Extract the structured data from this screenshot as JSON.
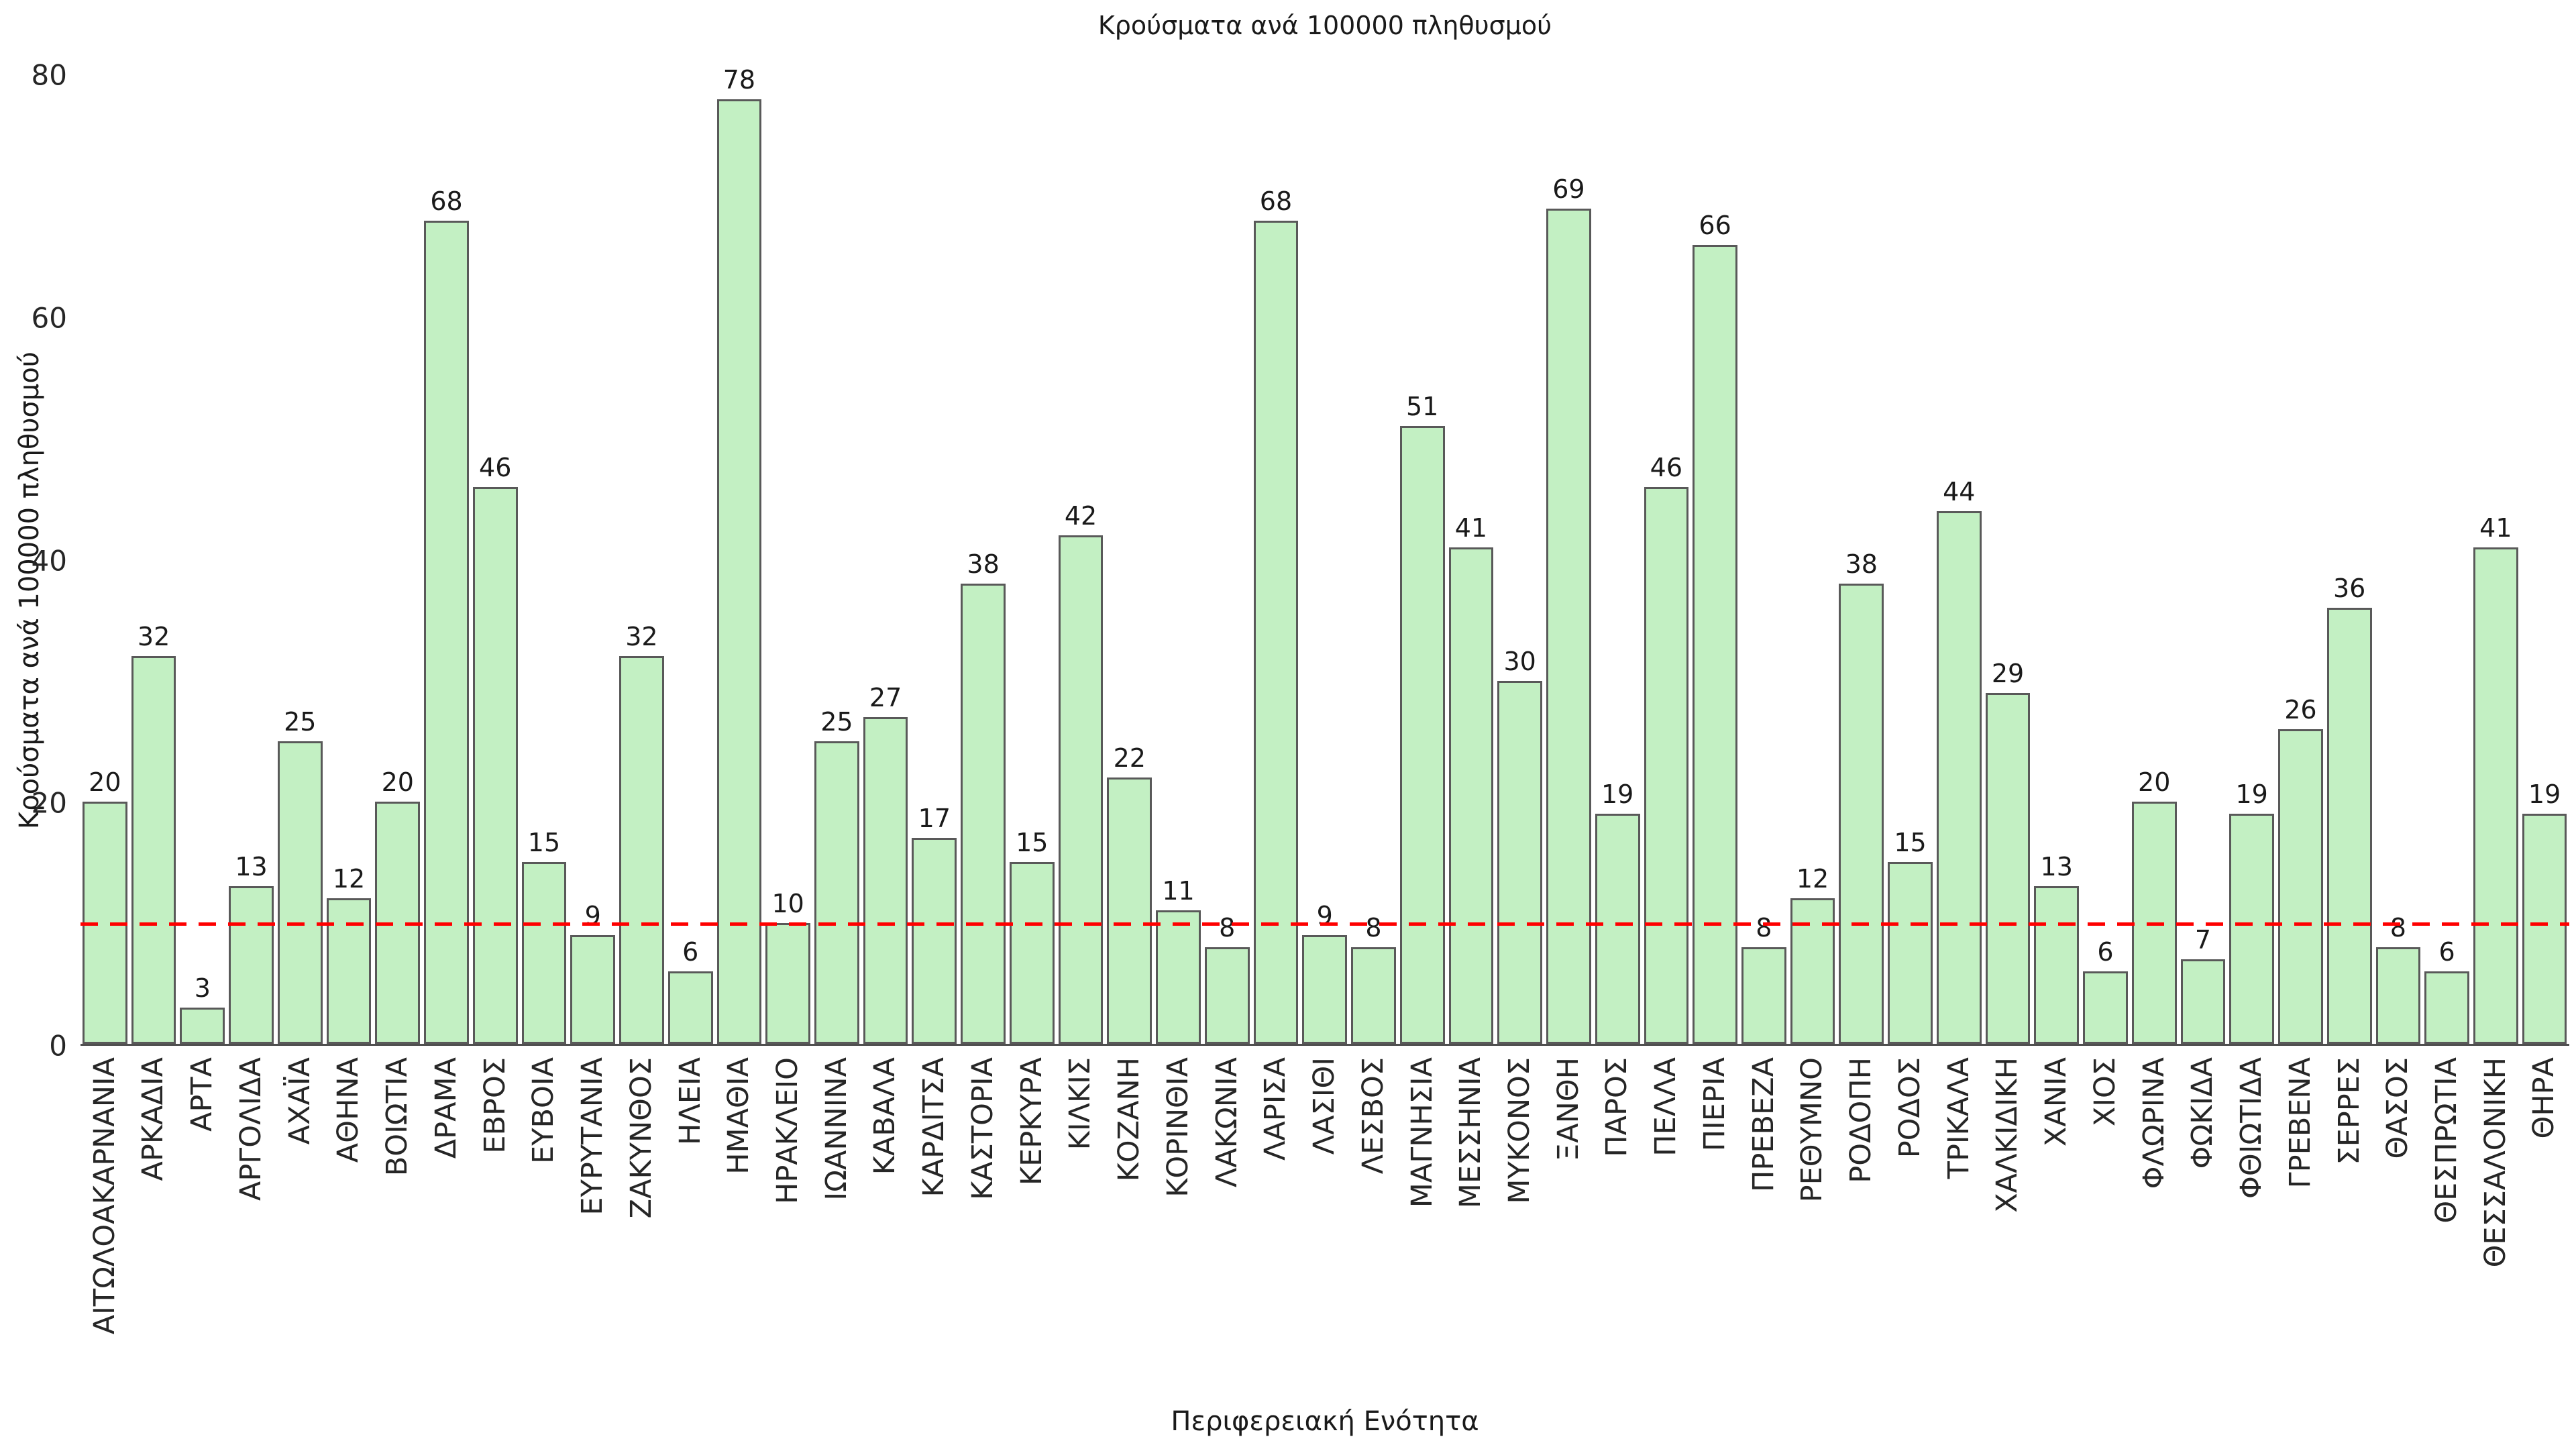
{
  "chart_data": {
    "type": "bar",
    "title": "Κρούσματα ανά 100000 πληθυσμού",
    "xlabel": "Περιφερειακή Ενότητα",
    "ylabel": "Κρούσματα ανά 100000 πληθυσμού",
    "ylim": [
      0,
      80
    ],
    "yticks": [
      0,
      20,
      40,
      60,
      80
    ],
    "grid": false,
    "legend_position": "none",
    "bar_color": "#c3f0c3",
    "bar_edge_color": "#595959",
    "background_color": "#ffffff",
    "reference_line": {
      "y": 10,
      "color": "#ff0000",
      "style": "dashed"
    },
    "categories": [
      "ΑΙΤΩΛΟΑΚΑΡΝΑΝΙΑ",
      "ΑΡΚΑΔΙΑ",
      "ΑΡΤΑ",
      "ΑΡΓΟΛΙΔΑ",
      "ΑΧΑΪΑ",
      "ΑΘΗΝΑ",
      "ΒΟΙΩΤΙΑ",
      "ΔΡΑΜΑ",
      "ΕΒΡΟΣ",
      "ΕΥΒΟΙΑ",
      "ΕΥΡΥΤΑΝΙΑ",
      "ΖΑΚΥΝΘΟΣ",
      "ΗΛΕΙΑ",
      "ΗΜΑΘΙΑ",
      "ΗΡΑΚΛΕΙΟ",
      "ΙΩΑΝΝΙΝΑ",
      "ΚΑΒΑΛΑ",
      "ΚΑΡΔΙΤΣΑ",
      "ΚΑΣΤΟΡΙΑ",
      "ΚΕΡΚΥΡΑ",
      "ΚΙΛΚΙΣ",
      "ΚΟΖΑΝΗ",
      "ΚΟΡΙΝΘΙΑ",
      "ΛΑΚΩΝΙΑ",
      "ΛΑΡΙΣΑ",
      "ΛΑΣΙΘΙ",
      "ΛΕΣΒΟΣ",
      "ΜΑΓΝΗΣΙΑ",
      "ΜΕΣΣΗΝΙΑ",
      "ΜΥΚΟΝΟΣ",
      "ΞΑΝΘΗ",
      "ΠΑΡΟΣ",
      "ΠΕΛΛΑ",
      "ΠΙΕΡΙΑ",
      "ΠΡΕΒΕΖΑ",
      "ΡΕΘΥΜΝΟ",
      "ΡΟΔΟΠΗ",
      "ΡΟΔΟΣ",
      "ΤΡΙΚΑΛΑ",
      "ΧΑΛΚΙΔΙΚΗ",
      "ΧΑΝΙΑ",
      "ΧΙΟΣ",
      "ΦΛΩΡΙΝΑ",
      "ΦΩΚΙΔΑ",
      "ΦΘΙΩΤΙΔΑ",
      "ΓΡΕΒΕΝΑ",
      "ΣΕΡΡΕΣ",
      "ΘΑΣΟΣ",
      "ΘΕΣΠΡΩΤΙΑ",
      "ΘΕΣΣΑΛΟΝΙΚΗ",
      "ΘΗΡΑ"
    ],
    "values": [
      20,
      32,
      3,
      13,
      25,
      12,
      20,
      68,
      46,
      15,
      9,
      32,
      6,
      78,
      10,
      25,
      27,
      17,
      38,
      15,
      42,
      22,
      11,
      8,
      68,
      9,
      8,
      51,
      41,
      30,
      69,
      19,
      46,
      66,
      8,
      12,
      38,
      15,
      44,
      29,
      13,
      6,
      20,
      7,
      19,
      26,
      36,
      8,
      6,
      41,
      19
    ]
  }
}
